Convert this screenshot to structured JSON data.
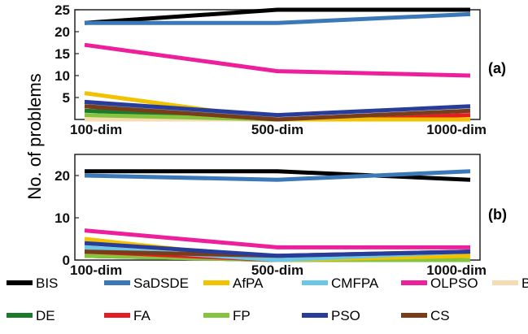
{
  "ylabel": "No. of problems",
  "colors": {
    "BIS": "#000000",
    "SaDSDE": "#3b78b8",
    "AfPA": "#f2c200",
    "CMFPA": "#6cc6e6",
    "OLPSO": "#ee1f9a",
    "BA": "#f7dcb2",
    "DE": "#1b7a2c",
    "FA": "#e51c23",
    "FP": "#86c440",
    "PSO": "#283d9a",
    "CS": "#7a3d1a"
  },
  "legend": [
    "BIS",
    "SaDSDE",
    "AfPA",
    "CMFPA",
    "OLPSO",
    "BA",
    "DE",
    "FA",
    "FP",
    "PSO",
    "CS"
  ],
  "chart_data": [
    {
      "type": "line",
      "panel": "(a)",
      "categories": [
        "100-dim",
        "500-dim",
        "1000-dim"
      ],
      "yticks": [
        5,
        10,
        15,
        20,
        25
      ],
      "ylim": [
        0,
        25
      ],
      "series": [
        {
          "name": "BIS",
          "values": [
            22,
            25,
            25
          ]
        },
        {
          "name": "SaDSDE",
          "values": [
            22,
            22,
            24
          ]
        },
        {
          "name": "AfPA",
          "values": [
            6,
            0,
            0
          ]
        },
        {
          "name": "CMFPA",
          "values": [
            4,
            0,
            2
          ]
        },
        {
          "name": "OLPSO",
          "values": [
            17,
            11,
            10
          ]
        },
        {
          "name": "BA",
          "values": [
            0,
            0,
            0
          ]
        },
        {
          "name": "DE",
          "values": [
            2,
            0,
            0
          ]
        },
        {
          "name": "FA",
          "values": [
            3,
            0,
            1
          ]
        },
        {
          "name": "FP",
          "values": [
            1,
            0,
            0
          ]
        },
        {
          "name": "PSO",
          "values": [
            4,
            1,
            3
          ]
        },
        {
          "name": "CS",
          "values": [
            3,
            0,
            2
          ]
        }
      ]
    },
    {
      "type": "line",
      "panel": "(b)",
      "categories": [
        "100-dim",
        "500-dim",
        "1000-dim"
      ],
      "yticks": [
        0,
        10,
        20
      ],
      "ylim": [
        0,
        25
      ],
      "series": [
        {
          "name": "BIS",
          "values": [
            21,
            21,
            19
          ]
        },
        {
          "name": "SaDSDE",
          "values": [
            20,
            19,
            21
          ]
        },
        {
          "name": "AfPA",
          "values": [
            5,
            0,
            1
          ]
        },
        {
          "name": "CMFPA",
          "values": [
            3,
            0,
            2
          ]
        },
        {
          "name": "OLPSO",
          "values": [
            7,
            3,
            3
          ]
        },
        {
          "name": "BA",
          "values": [
            1,
            0,
            0
          ]
        },
        {
          "name": "DE",
          "values": [
            1,
            0,
            0
          ]
        },
        {
          "name": "FA",
          "values": [
            2,
            0,
            2
          ]
        },
        {
          "name": "FP",
          "values": [
            1,
            0,
            0
          ]
        },
        {
          "name": "PSO",
          "values": [
            4,
            1,
            2
          ]
        },
        {
          "name": "CS",
          "values": [
            2,
            1,
            2
          ]
        }
      ]
    }
  ]
}
